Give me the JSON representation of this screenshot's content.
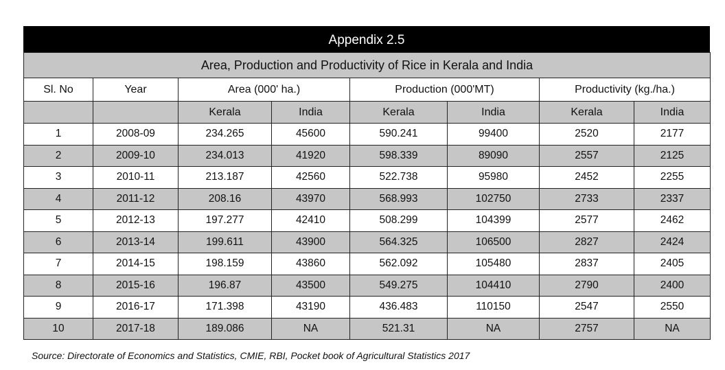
{
  "table": {
    "title": "Appendix  2.5",
    "subtitle": "Area, Production and Productivity of Rice in Kerala and India",
    "headers": {
      "slno": "Sl. No",
      "year": "Year",
      "area": "Area (000' ha.)",
      "production": "Production  (000'MT)",
      "productivity": "Productivity  (kg./ha.)"
    },
    "subheaders": [
      "Kerala",
      "India",
      "Kerala",
      "India",
      "Kerala",
      "India"
    ],
    "rows": [
      [
        "1",
        "2008-09",
        "234.265",
        "45600",
        "590.241",
        "99400",
        "2520",
        "2177"
      ],
      [
        "2",
        "2009-10",
        "234.013",
        "41920",
        "598.339",
        "89090",
        "2557",
        "2125"
      ],
      [
        "3",
        "2010-11",
        "213.187",
        "42560",
        "522.738",
        "95980",
        "2452",
        "2255"
      ],
      [
        "4",
        "2011-12",
        "208.16",
        "43970",
        "568.993",
        "102750",
        "2733",
        "2337"
      ],
      [
        "5",
        "2012-13",
        "197.277",
        "42410",
        "508.299",
        "104399",
        "2577",
        "2462"
      ],
      [
        "6",
        "2013-14",
        "199.611",
        "43900",
        "564.325",
        "106500",
        "2827",
        "2424"
      ],
      [
        "7",
        "2014-15",
        "198.159",
        "43860",
        "562.092",
        "105480",
        "2837",
        "2405"
      ],
      [
        "8",
        "2015-16",
        "196.87",
        "43500",
        "549.275",
        "104410",
        "2790",
        "2400"
      ],
      [
        "9",
        "2016-17",
        "171.398",
        "43190",
        "436.483",
        "110150",
        "2547",
        "2550"
      ],
      [
        "10",
        "2017-18",
        "189.086",
        "NA",
        "521.31",
        "NA",
        "2757",
        "NA"
      ]
    ]
  },
  "source": "Source: Directorate of Economics and Statistics, CMIE, RBI, Pocket book of Agricultural Statistics 2017"
}
